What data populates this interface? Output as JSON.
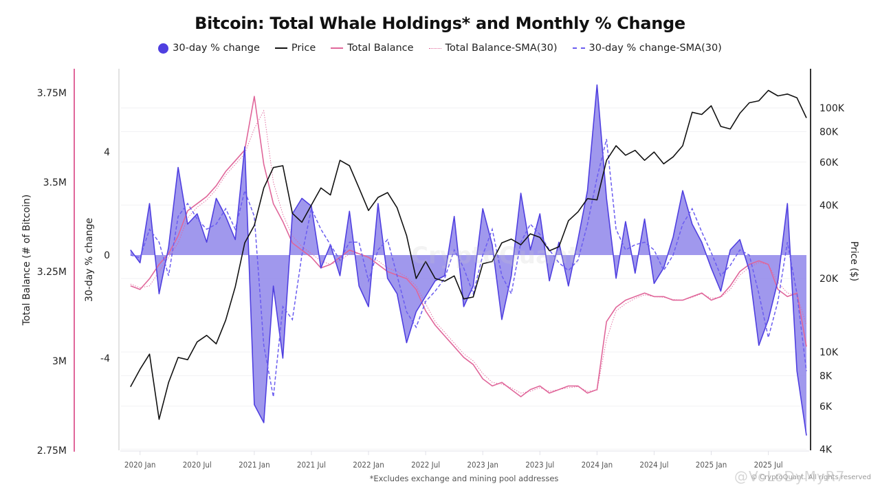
{
  "chart_data": {
    "type": "line",
    "title": "Bitcoin: Total Whale Holdings* and Monthly % Change",
    "footnote": "*Excludes exchange and mining pool addresses",
    "copyright": "© CryptoQuant. All rights reserved",
    "watermark": "@VoLoDyMyR7",
    "center_watermark": "CryptoQuant",
    "legend_position": "top-center",
    "legend": [
      {
        "name": "30-day % change",
        "style": "filled-circle",
        "color": "#4f3fe0"
      },
      {
        "name": "Price",
        "style": "solid",
        "color": "#111111"
      },
      {
        "name": "Total Balance",
        "style": "solid",
        "color": "#e0669a"
      },
      {
        "name": "Total Balance-SMA(30)",
        "style": "dotted",
        "color": "#e0669a"
      },
      {
        "name": "30-day % change-SMA(30)",
        "style": "dashed",
        "color": "#6a5cf0"
      }
    ],
    "colors": {
      "pct_change": "#4f3fe0",
      "pct_fill": "#8f86ea",
      "price": "#111111",
      "balance": "#e0669a",
      "balance_axis": "#e0669a",
      "grid": "#eeeeee"
    },
    "x_axis": {
      "ticks": [
        "2020 Jan",
        "2020 Jul",
        "2021 Jan",
        "2021 Jul",
        "2022 Jan",
        "2022 Jul",
        "2023 Jan",
        "2023 Jul",
        "2024 Jan",
        "2024 Jul",
        "2025 Jan",
        "2025 Jul"
      ],
      "range": [
        "2019-11",
        "2025-11"
      ]
    },
    "y_axes": {
      "balance": {
        "label": "Total Balance (# of Bitcoin)",
        "ticks": [
          "3.75M",
          "3.5M",
          "3.25M",
          "3M",
          "2.75M"
        ],
        "values": [
          3750000,
          3500000,
          3250000,
          3000000,
          2750000
        ],
        "range": [
          2750000,
          3750000
        ]
      },
      "pct_change": {
        "label": "30-day % change",
        "ticks": [
          "4",
          "0",
          "-4"
        ],
        "values": [
          4,
          0,
          -4
        ],
        "range": [
          -7.5,
          6.8
        ]
      },
      "price": {
        "label": "Price ($)",
        "scale": "log",
        "ticks": [
          "100K",
          "80K",
          "60K",
          "40K",
          "20K",
          "10K",
          "8K",
          "6K",
          "4K"
        ],
        "values": [
          100000,
          80000,
          60000,
          40000,
          20000,
          10000,
          8000,
          6000,
          4000
        ],
        "range": [
          4000,
          140000
        ]
      }
    },
    "x": [
      "2019-12",
      "2020-01",
      "2020-02",
      "2020-03",
      "2020-04",
      "2020-05",
      "2020-06",
      "2020-07",
      "2020-08",
      "2020-09",
      "2020-10",
      "2020-11",
      "2020-12",
      "2021-01",
      "2021-02",
      "2021-03",
      "2021-04",
      "2021-05",
      "2021-06",
      "2021-07",
      "2021-08",
      "2021-09",
      "2021-10",
      "2021-11",
      "2021-12",
      "2022-01",
      "2022-02",
      "2022-03",
      "2022-04",
      "2022-05",
      "2022-06",
      "2022-07",
      "2022-08",
      "2022-09",
      "2022-10",
      "2022-11",
      "2022-12",
      "2023-01",
      "2023-02",
      "2023-03",
      "2023-04",
      "2023-05",
      "2023-06",
      "2023-07",
      "2023-08",
      "2023-09",
      "2023-10",
      "2023-11",
      "2023-12",
      "2024-01",
      "2024-02",
      "2024-03",
      "2024-04",
      "2024-05",
      "2024-06",
      "2024-07",
      "2024-08",
      "2024-09",
      "2024-10",
      "2024-11",
      "2024-12",
      "2025-01",
      "2025-02",
      "2025-03",
      "2025-04",
      "2025-05",
      "2025-06",
      "2025-07",
      "2025-08",
      "2025-09",
      "2025-10",
      "2025-11"
    ],
    "series": [
      {
        "name": "30-day % change",
        "axis": "pct_change",
        "values": [
          0.2,
          -0.3,
          2.0,
          -1.5,
          0.3,
          3.4,
          1.2,
          1.6,
          0.5,
          2.2,
          1.5,
          0.6,
          4.2,
          -5.8,
          -6.5,
          -1.2,
          -4.0,
          1.6,
          2.2,
          1.9,
          -0.5,
          0.4,
          -0.8,
          1.7,
          -1.2,
          -2.0,
          2.0,
          -0.9,
          -1.5,
          -3.4,
          -2.2,
          -1.6,
          -1.0,
          -0.8,
          1.5,
          -2.0,
          -1.2,
          1.8,
          0.4,
          -2.5,
          -0.8,
          2.4,
          0.2,
          1.6,
          -1.0,
          0.5,
          -1.2,
          0.6,
          2.5,
          6.6,
          2.2,
          -0.9,
          1.3,
          -0.7,
          1.4,
          -1.1,
          -0.5,
          0.7,
          2.5,
          1.2,
          0.5,
          -0.5,
          -1.4,
          0.2,
          0.6,
          -0.6,
          -3.5,
          -2.5,
          -1.0,
          2.0,
          -4.5,
          -7.0
        ]
      },
      {
        "name": "30-day % change-SMA(30)",
        "axis": "pct_change",
        "values": [
          0.0,
          -0.1,
          1.0,
          0.5,
          -0.8,
          1.5,
          2.0,
          1.4,
          1.0,
          1.2,
          1.8,
          1.0,
          2.5,
          1.5,
          -3.5,
          -5.5,
          -2.0,
          -2.5,
          0.0,
          1.8,
          1.0,
          0.4,
          -0.2,
          0.5,
          0.5,
          -1.0,
          0.2,
          0.6,
          -0.8,
          -2.2,
          -2.8,
          -1.8,
          -1.4,
          -0.9,
          0.2,
          -0.5,
          -1.5,
          0.0,
          1.0,
          -0.8,
          -1.5,
          0.5,
          1.2,
          0.8,
          0.2,
          -0.3,
          -0.6,
          -0.2,
          1.2,
          3.0,
          4.5,
          1.0,
          0.2,
          0.4,
          0.5,
          0.2,
          -0.6,
          0.0,
          1.2,
          1.8,
          0.9,
          0.1,
          -0.8,
          -0.4,
          0.2,
          0.0,
          -1.5,
          -3.2,
          -1.8,
          0.5,
          -1.5,
          -4.5
        ]
      },
      {
        "name": "Price",
        "axis": "price",
        "values": [
          7200,
          8500,
          9800,
          5300,
          7500,
          9500,
          9300,
          11000,
          11700,
          10800,
          13500,
          18500,
          28000,
          33000,
          47000,
          57000,
          58000,
          37000,
          34000,
          40000,
          47000,
          44000,
          61000,
          58000,
          47000,
          38000,
          43000,
          45000,
          39000,
          30000,
          20000,
          23500,
          20000,
          19500,
          20500,
          16500,
          16800,
          23000,
          23500,
          28000,
          29000,
          27500,
          30500,
          29500,
          26000,
          27000,
          34500,
          37500,
          42500,
          42000,
          61000,
          70000,
          64000,
          67000,
          61000,
          66000,
          59000,
          63000,
          70000,
          96000,
          94000,
          102000,
          84000,
          82000,
          95000,
          105000,
          107000,
          118000,
          112000,
          114000,
          110000,
          91000
        ]
      },
      {
        "name": "Total Balance",
        "axis": "balance",
        "values": [
          3210000,
          3200000,
          3230000,
          3270000,
          3300000,
          3350000,
          3420000,
          3440000,
          3460000,
          3490000,
          3530000,
          3560000,
          3590000,
          3740000,
          3550000,
          3440000,
          3390000,
          3330000,
          3310000,
          3290000,
          3260000,
          3270000,
          3290000,
          3310000,
          3300000,
          3290000,
          3270000,
          3250000,
          3240000,
          3230000,
          3200000,
          3140000,
          3100000,
          3070000,
          3040000,
          3010000,
          2990000,
          2950000,
          2930000,
          2940000,
          2920000,
          2900000,
          2920000,
          2930000,
          2910000,
          2920000,
          2930000,
          2930000,
          2910000,
          2920000,
          3110000,
          3150000,
          3170000,
          3180000,
          3190000,
          3180000,
          3180000,
          3170000,
          3170000,
          3180000,
          3190000,
          3170000,
          3180000,
          3210000,
          3250000,
          3270000,
          3280000,
          3270000,
          3200000,
          3180000,
          3190000,
          3040000
        ]
      },
      {
        "name": "Total Balance-SMA(30)",
        "axis": "balance",
        "values": [
          3215000,
          3205000,
          3210000,
          3250000,
          3290000,
          3330000,
          3400000,
          3430000,
          3450000,
          3480000,
          3520000,
          3550000,
          3580000,
          3650000,
          3700000,
          3500000,
          3410000,
          3350000,
          3320000,
          3300000,
          3280000,
          3270000,
          3280000,
          3300000,
          3300000,
          3290000,
          3280000,
          3260000,
          3250000,
          3235000,
          3210000,
          3160000,
          3110000,
          3080000,
          3050000,
          3020000,
          3000000,
          2965000,
          2940000,
          2935000,
          2925000,
          2910000,
          2915000,
          2925000,
          2915000,
          2920000,
          2925000,
          2928000,
          2915000,
          2918000,
          3060000,
          3140000,
          3160000,
          3175000,
          3185000,
          3180000,
          3178000,
          3172000,
          3170000,
          3178000,
          3188000,
          3175000,
          3178000,
          3200000,
          3240000,
          3262000,
          3275000,
          3270000,
          3220000,
          3190000,
          3185000,
          3100000
        ]
      }
    ]
  }
}
